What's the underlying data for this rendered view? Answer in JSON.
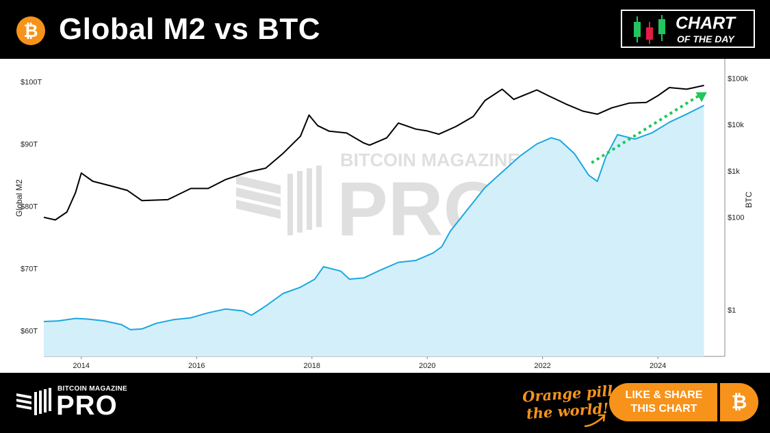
{
  "header": {
    "logo_icon": "bitcoin-icon",
    "logo_glyph": "₿",
    "title": "Global M2 vs BTC",
    "badge_line1": "CHART",
    "badge_line2": "OF THE DAY",
    "badge_icon": "candlestick-icon"
  },
  "watermark": {
    "line1": "BITCOIN MAGAZINE",
    "line2": "PRO"
  },
  "footer": {
    "logo_small": "BITCOIN MAGAZINE",
    "logo_big": "PRO",
    "slogan_line1": "Orange pill",
    "slogan_line2": "the world!",
    "cta_line1": "LIKE & SHARE",
    "cta_line2": "THIS CHART",
    "cta_icon_glyph": "₿"
  },
  "colors": {
    "accent": "#f7931a",
    "m2_line": "#1aa7e0",
    "m2_fill": "#d3effa",
    "btc_line": "#000000",
    "trend_arrow": "#22c55e"
  },
  "chart_data": {
    "type": "line",
    "title": "Global M2 vs BTC",
    "x_ticks": [
      "2014",
      "2016",
      "2018",
      "2020",
      "2022",
      "2024"
    ],
    "xlim": [
      2013.35,
      2024.9
    ],
    "left_axis": {
      "label": "Global M2",
      "ticks": [
        "$60T",
        "$70T",
        "$80T",
        "$90T",
        "$100T"
      ],
      "tick_values": [
        60,
        70,
        80,
        90,
        100
      ],
      "ylim": [
        55.9,
        102.8
      ]
    },
    "right_axis": {
      "label": "BTC",
      "scale": "log",
      "ticks": [
        "$1",
        "$100",
        "$1k",
        "$10k",
        "$100k"
      ],
      "tick_values": [
        1,
        100,
        1000,
        10000,
        100000
      ],
      "ylim": [
        0.1,
        200000
      ]
    },
    "grid": false,
    "series": [
      {
        "axis": "left",
        "style": "filled-area",
        "x": [
          2013.35,
          2013.6,
          2013.9,
          2014.1,
          2014.4,
          2014.7,
          2014.85,
          2015.05,
          2015.3,
          2015.6,
          2015.9,
          2016.2,
          2016.5,
          2016.8,
          2016.95,
          2017.2,
          2017.5,
          2017.8,
          2018.05,
          2018.2,
          2018.5,
          2018.65,
          2018.9,
          2019.2,
          2019.5,
          2019.8,
          2020.1,
          2020.25,
          2020.4,
          2020.7,
          2021.0,
          2021.3,
          2021.6,
          2021.9,
          2022.15,
          2022.3,
          2022.55,
          2022.8,
          2022.95,
          2023.1,
          2023.3,
          2023.6,
          2023.9,
          2024.2,
          2024.5,
          2024.8
        ],
        "values": [
          61.5,
          61.6,
          62.0,
          61.9,
          61.6,
          61.0,
          60.2,
          60.3,
          61.2,
          61.8,
          62.1,
          62.9,
          63.5,
          63.2,
          62.5,
          64.0,
          66.0,
          67.0,
          68.3,
          70.3,
          69.6,
          68.3,
          68.5,
          69.8,
          71.0,
          71.3,
          72.5,
          73.5,
          76.0,
          79.5,
          83.0,
          85.5,
          88.0,
          90.0,
          91.0,
          90.6,
          88.5,
          85.0,
          84.0,
          88.0,
          91.5,
          90.8,
          91.8,
          93.5,
          94.8,
          96.2
        ]
      },
      {
        "axis": "right",
        "style": "line",
        "x": [
          2013.35,
          2013.55,
          2013.75,
          2013.9,
          2014.0,
          2014.2,
          2014.5,
          2014.8,
          2015.05,
          2015.5,
          2015.9,
          2016.2,
          2016.5,
          2016.9,
          2017.2,
          2017.5,
          2017.8,
          2017.95,
          2018.1,
          2018.3,
          2018.6,
          2018.9,
          2019.0,
          2019.3,
          2019.5,
          2019.8,
          2020.0,
          2020.2,
          2020.5,
          2020.8,
          2021.0,
          2021.3,
          2021.5,
          2021.9,
          2022.1,
          2022.4,
          2022.7,
          2022.95,
          2023.2,
          2023.5,
          2023.8,
          2024.0,
          2024.2,
          2024.5,
          2024.8
        ],
        "values": [
          100,
          88,
          130,
          340,
          900,
          600,
          480,
          380,
          230,
          240,
          420,
          420,
          650,
          950,
          1150,
          2400,
          5600,
          16000,
          9500,
          7200,
          6600,
          4000,
          3600,
          5200,
          10800,
          8000,
          7300,
          6200,
          9100,
          15000,
          33000,
          58000,
          35000,
          56000,
          42000,
          28000,
          19500,
          16800,
          23000,
          29000,
          30000,
          42000,
          63000,
          58000,
          70000
        ]
      }
    ],
    "annotation": {
      "type": "arrow",
      "style": "dotted",
      "from": [
        2022.85,
        1500
      ],
      "to": [
        2024.85,
        50000
      ]
    }
  }
}
